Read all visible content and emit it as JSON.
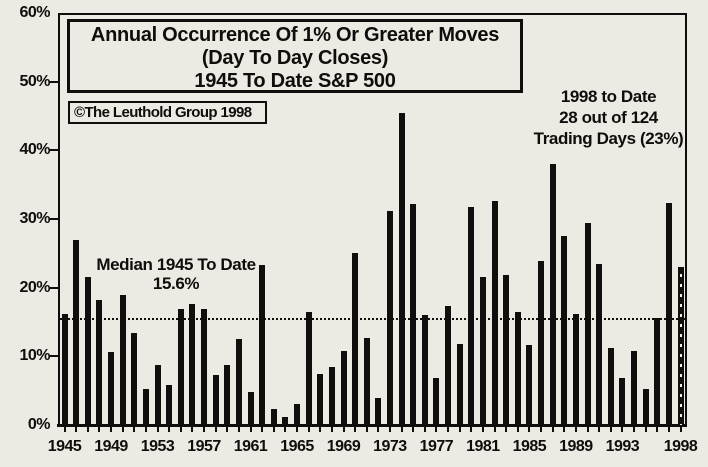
{
  "title": {
    "line1": "Annual Occurrence Of 1% Or Greater Moves",
    "line2": "(Day To Day Closes)",
    "line3": "1945 To Date S&P 500"
  },
  "copyright": "©The Leuthold Group 1998",
  "annotations": {
    "median_line1": "Median 1945 To Date",
    "median_line2": "15.6%",
    "ytd_line1": "1998 to Date",
    "ytd_line2": "28 out of 124",
    "ytd_line3": "Trading Days (23%)"
  },
  "chart_data": {
    "type": "bar",
    "title": "Annual Occurrence Of 1% Or Greater Moves (Day To Day Closes) 1945 To Date S&P 500",
    "xlabel": "",
    "ylabel": "",
    "ylim": [
      0,
      60
    ],
    "ytick_labels": [
      "0%",
      "10%",
      "20%",
      "30%",
      "40%",
      "50%",
      "60%"
    ],
    "xtick_labels": [
      "1945",
      "1949",
      "1953",
      "1957",
      "1961",
      "1965",
      "1969",
      "1973",
      "1977",
      "1981",
      "1985",
      "1989",
      "1993",
      "1998"
    ],
    "grid": false,
    "median_value": 15.6,
    "years": [
      1945,
      1946,
      1947,
      1948,
      1949,
      1950,
      1951,
      1952,
      1953,
      1954,
      1955,
      1956,
      1957,
      1958,
      1959,
      1960,
      1961,
      1962,
      1963,
      1964,
      1965,
      1966,
      1967,
      1968,
      1969,
      1970,
      1971,
      1972,
      1973,
      1974,
      1975,
      1976,
      1977,
      1978,
      1979,
      1980,
      1981,
      1982,
      1983,
      1984,
      1985,
      1986,
      1987,
      1988,
      1989,
      1990,
      1991,
      1992,
      1993,
      1994,
      1995,
      1996,
      1997,
      1998
    ],
    "values": [
      16.1,
      26.9,
      21.6,
      18.2,
      10.7,
      19.0,
      13.4,
      5.2,
      8.7,
      5.9,
      16.9,
      17.7,
      16.9,
      7.3,
      8.8,
      12.6,
      4.8,
      23.3,
      2.4,
      1.2,
      3.0,
      16.4,
      7.5,
      8.4,
      10.8,
      25.1,
      12.7,
      4.0,
      31.1,
      45.4,
      32.2,
      16.0,
      6.8,
      17.3,
      11.8,
      31.8,
      21.6,
      32.7,
      21.8,
      16.5,
      11.7,
      23.9,
      38.0,
      27.6,
      16.2,
      29.4,
      23.5,
      11.2,
      6.8,
      10.8,
      5.2,
      15.6,
      32.3,
      23.0
    ],
    "final_bar_year": 1998,
    "final_bar_style": "dotted"
  }
}
